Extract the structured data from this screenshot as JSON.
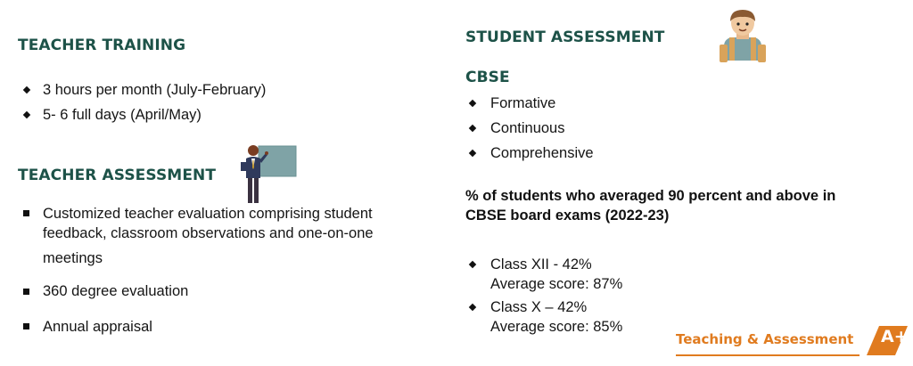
{
  "teacher_training": {
    "heading": "TEACHER TRAINING",
    "items": [
      "3 hours per month (July-February)",
      "5- 6 full days (April/May)"
    ]
  },
  "teacher_assessment": {
    "heading": "TEACHER ASSESSMENT",
    "items": [
      [
        "Customized teacher evaluation comprising student",
        "feedback, classroom observations and one-on-one",
        "meetings"
      ],
      [
        "360 degree evaluation"
      ],
      [
        "Annual appraisal"
      ]
    ]
  },
  "student_assessment": {
    "heading": "STUDENT ASSESSMENT",
    "subheading": "CBSE",
    "items": [
      "Formative",
      "Continuous",
      "Comprehensive"
    ],
    "stat_heading": [
      "% of students who averaged 90 percent and above in",
      "CBSE board exams (2022-23)"
    ],
    "results": [
      {
        "line1": "Class XII - 42%",
        "line2": "Average score: 87%"
      },
      {
        "line1": "Class X – 42%",
        "line2": "Average score: 85%"
      }
    ]
  },
  "footer": {
    "label": "Teaching & Assessment",
    "badge": "A+",
    "accent_color": "#e07b1f"
  },
  "colors": {
    "heading": "#1d5248",
    "accent": "#e07b1f"
  },
  "icons": {
    "teacher": "teacher-at-board-icon",
    "student": "student-with-backpack-icon"
  }
}
